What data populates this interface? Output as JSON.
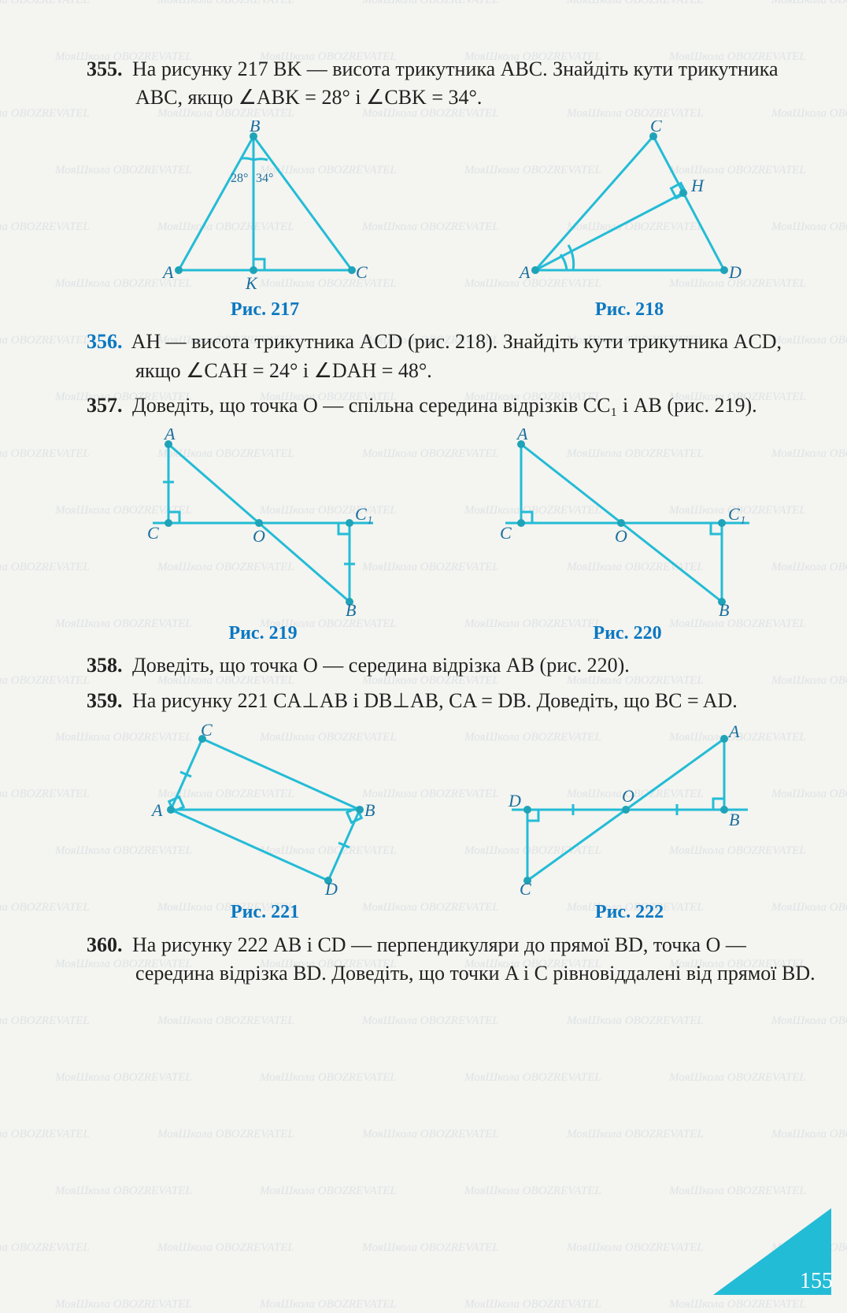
{
  "page_number": "155",
  "diagram_color": "#23bcd6",
  "caption_color": "#0a78c2",
  "text_color": "#222222",
  "background_color": "#f4f4f0",
  "watermark_text": "МояШкола  OBOZREVATEL",
  "problems": {
    "p355": {
      "num": "355.",
      "text": "На рисунку 217 BK — висота трикутника ABC. Знайдіть кути трикутника ABC, якщо ∠ABK = 28° і ∠CBK = 34°."
    },
    "p356": {
      "num": "356.",
      "text": "AH — висота трикутника ACD (рис. 218). Знайдіть кути трикутника ACD, якщо ∠CAH = 24° і ∠DAH = 48°."
    },
    "p357": {
      "num": "357.",
      "text": "Доведіть, що точка O — спільна середина відрізків CC₁ і AB (рис. 219)."
    },
    "p358": {
      "num": "358.",
      "text": "Доведіть, що точка O — середина відрізка AB (рис. 220)."
    },
    "p359": {
      "num": "359.",
      "text": "На рисунку 221 CA⊥AB і DB⊥AB, CA = DB. Доведіть, що BC = AD."
    },
    "p360": {
      "num": "360.",
      "text": "На рисунку 222 AB і CD — перпендикуляри до прямої BD, точка O — середина відрізка BD. Доведіть, що точки A і C рівновіддалені від прямої BD."
    }
  },
  "figures": {
    "f217": {
      "caption": "Рис. 217",
      "labels": {
        "A": "A",
        "B": "B",
        "C": "C",
        "K": "K",
        "a1": "28°",
        "a2": "34°"
      }
    },
    "f218": {
      "caption": "Рис. 218",
      "labels": {
        "A": "A",
        "C": "C",
        "D": "D",
        "H": "H"
      }
    },
    "f219": {
      "caption": "Рис. 219",
      "labels": {
        "A": "A",
        "B": "B",
        "C": "C",
        "C1": "C₁",
        "O": "O"
      }
    },
    "f220": {
      "caption": "Рис. 220",
      "labels": {
        "A": "A",
        "B": "B",
        "C": "C",
        "C1": "C₁",
        "O": "O"
      }
    },
    "f221": {
      "caption": "Рис. 221",
      "labels": {
        "A": "A",
        "B": "B",
        "C": "C",
        "D": "D"
      }
    },
    "f222": {
      "caption": "Рис. 222",
      "labels": {
        "A": "A",
        "B": "B",
        "C": "C",
        "D": "D",
        "O": "O"
      }
    }
  },
  "svg_style": {
    "stroke": "#23bcd6",
    "stroke_width": 3,
    "point_fill": "#1fa3b8",
    "label_fill": "#1a6e9e",
    "label_fontsize": 22,
    "angle_fontsize": 16
  }
}
